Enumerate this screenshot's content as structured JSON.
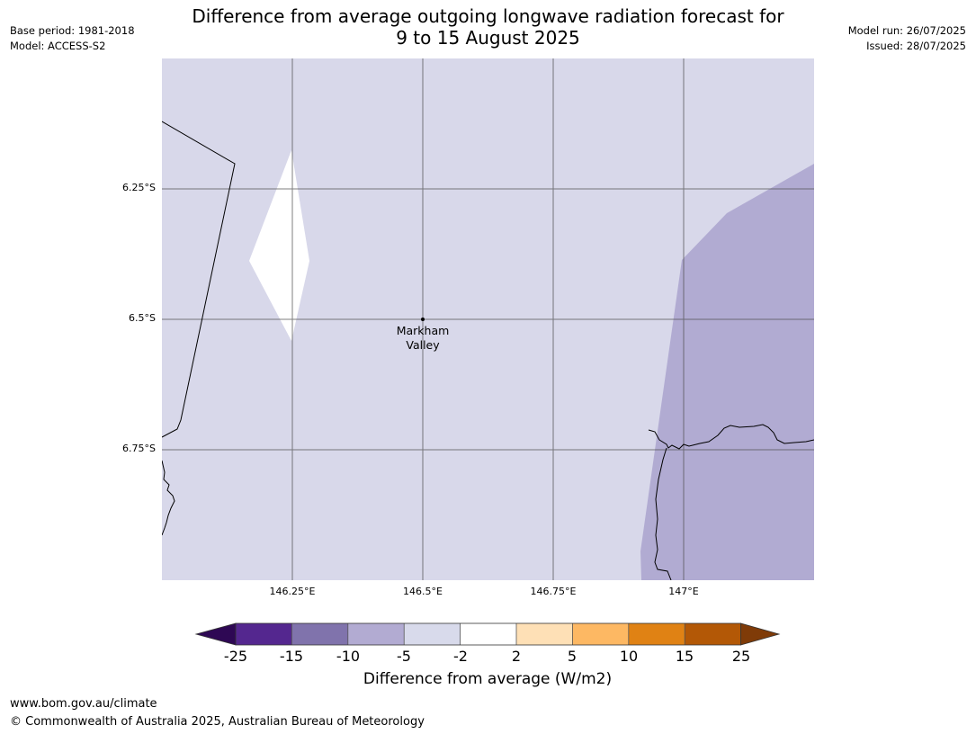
{
  "title_line1": "Difference from average outgoing longwave radiation forecast for",
  "title_line2": "9 to 15 August 2025",
  "meta_left": {
    "base_period": "Base period: 1981-2018",
    "model": "Model: ACCESS-S2"
  },
  "meta_right": {
    "model_run": "Model run: 26/07/2025",
    "issued": "Issued: 28/07/2025"
  },
  "map": {
    "lat_labels": [
      "6.25°S",
      "6.5°S",
      "6.75°S"
    ],
    "lon_labels": [
      "146.25°E",
      "146.5°E",
      "146.75°E",
      "147°E"
    ],
    "place_label_line1": "Markham",
    "place_label_line2": "Valley",
    "colors": {
      "background_category": "#d8d8ea",
      "lower_category": "#b1abd2",
      "neutral_category": "#ffffff"
    }
  },
  "legend": {
    "title": "Difference from average (W/m2)",
    "ticks": [
      "-25",
      "-15",
      "-10",
      "-5",
      "-2",
      "2",
      "5",
      "10",
      "15",
      "25"
    ],
    "colors": {
      "lt_-25": "#2e0854",
      "-25_-15": "#54278f",
      "-15_-10": "#8073ac",
      "-10_-5": "#b2abd2",
      "-5_-2": "#d8daeb",
      "-2_2": "#ffffff",
      "2_5": "#fee0b6",
      "5_10": "#fdb863",
      "10_15": "#e08214",
      "15_25": "#b35806",
      "gt_25": "#7f3b08"
    }
  },
  "footer": {
    "url": "www.bom.gov.au/climate",
    "copyright": "© Commonwealth of Australia 2025, Australian Bureau of Meteorology"
  }
}
